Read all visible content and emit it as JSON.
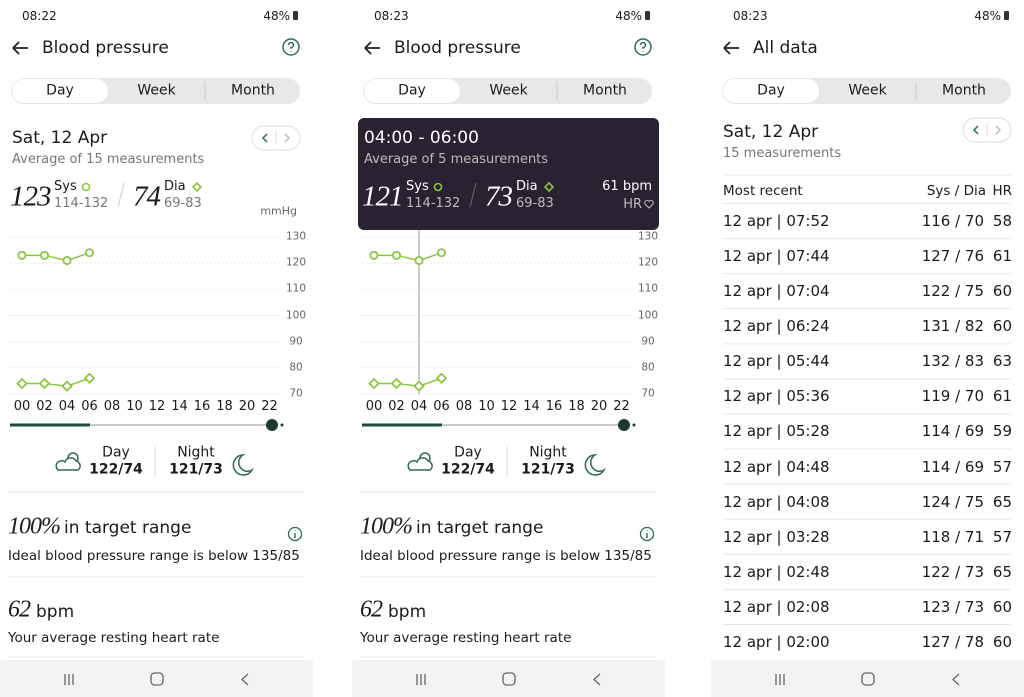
{
  "screens": [
    {
      "status": {
        "time": "08:22",
        "battery": "48%"
      },
      "header": {
        "title": "Blood pressure"
      },
      "tabs": [
        "Day",
        "Week",
        "Month"
      ],
      "date": {
        "title": "Sat, 12 Apr",
        "subtitle": "Average of 15 measurements"
      },
      "reading": {
        "sys": "123",
        "sys_label": "Sys",
        "sys_range": "114-132",
        "dia": "74",
        "dia_label": "Dia",
        "dia_range": "69-83"
      },
      "chart": {
        "type": "line",
        "unit": "mmHg",
        "categories": [
          "00",
          "02",
          "04",
          "06",
          "08",
          "10",
          "12",
          "14",
          "16",
          "18",
          "20",
          "22"
        ],
        "series": [
          {
            "marker": "circle",
            "color": "#8cc63f",
            "values": [
              123,
              123,
              121,
              124,
              null,
              null,
              null,
              null,
              null,
              null,
              null,
              null
            ]
          },
          {
            "marker": "diamond",
            "color": "#8cc63f",
            "values": [
              74,
              74,
              73,
              76,
              null,
              null,
              null,
              null,
              null,
              null,
              null,
              null
            ]
          }
        ],
        "ylim": [
          67,
          133
        ],
        "yticks": [
          70,
          80,
          90,
          100,
          110,
          120,
          130
        ],
        "grid": true
      },
      "summary": {
        "day_label": "Day",
        "day_value": "122/74",
        "night_label": "Night",
        "night_value": "121/73"
      },
      "target": {
        "value": "100%",
        "label": "in target range",
        "description": "Ideal blood pressure range is below 135/85"
      },
      "heart": {
        "value": "62",
        "unit": "bpm",
        "description": "Your average resting heart rate"
      }
    },
    {
      "status": {
        "time": "08:23",
        "battery": "48%"
      },
      "header": {
        "title": "Blood pressure"
      },
      "tabs": [
        "Day",
        "Week",
        "Month"
      ],
      "tooltip": {
        "title": "04:00 - 06:00",
        "subtitle": "Average of 5 measurements",
        "sys": "121",
        "sys_label": "Sys",
        "sys_range": "114-132",
        "dia": "73",
        "dia_label": "Dia",
        "dia_range": "69-83",
        "hr": "61 bpm",
        "hr_label": "HR"
      },
      "chart": {
        "type": "line",
        "selected_category": "04",
        "categories": [
          "00",
          "02",
          "04",
          "06",
          "08",
          "10",
          "12",
          "14",
          "16",
          "18",
          "20",
          "22"
        ],
        "series": [
          {
            "marker": "circle",
            "color": "#8cc63f",
            "values": [
              123,
              123,
              121,
              124,
              null,
              null,
              null,
              null,
              null,
              null,
              null,
              null
            ]
          },
          {
            "marker": "diamond",
            "color": "#8cc63f",
            "values": [
              74,
              74,
              73,
              76,
              null,
              null,
              null,
              null,
              null,
              null,
              null,
              null
            ]
          }
        ],
        "ylim": [
          67,
          133
        ],
        "yticks": [
          70,
          80,
          90,
          100,
          110,
          120,
          130
        ],
        "grid": true
      },
      "summary": {
        "day_label": "Day",
        "day_value": "122/74",
        "night_label": "Night",
        "night_value": "121/73"
      },
      "target": {
        "value": "100%",
        "label": "in target range",
        "description": "Ideal blood pressure range is below 135/85"
      },
      "heart": {
        "value": "62",
        "unit": "bpm",
        "description": "Your average resting heart rate"
      }
    },
    {
      "status": {
        "time": "08:23",
        "battery": "48%"
      },
      "header": {
        "title": "All data"
      },
      "tabs": [
        "Day",
        "Week",
        "Month"
      ],
      "date": {
        "title": "Sat, 12 Apr",
        "subtitle": "15 measurements"
      },
      "table": {
        "columns": [
          "Most recent",
          "Sys / Dia",
          "HR"
        ],
        "rows": [
          [
            "12 apr | 07:52",
            "116 / 70",
            "58"
          ],
          [
            "12 apr | 07:44",
            "127 / 76",
            "61"
          ],
          [
            "12 apr | 07:04",
            "122 / 75",
            "60"
          ],
          [
            "12 apr | 06:24",
            "131 / 82",
            "60"
          ],
          [
            "12 apr | 05:44",
            "132 / 83",
            "63"
          ],
          [
            "12 apr | 05:36",
            "119 / 70",
            "61"
          ],
          [
            "12 apr | 05:28",
            "114 / 69",
            "59"
          ],
          [
            "12 apr | 04:48",
            "114 / 69",
            "57"
          ],
          [
            "12 apr | 04:08",
            "124 / 75",
            "65"
          ],
          [
            "12 apr | 03:28",
            "118 / 71",
            "57"
          ],
          [
            "12 apr | 02:48",
            "122 / 73",
            "65"
          ],
          [
            "12 apr | 02:08",
            "123 / 73",
            "60"
          ],
          [
            "12 apr | 02:00",
            "127 / 78",
            "60"
          ]
        ]
      }
    }
  ]
}
